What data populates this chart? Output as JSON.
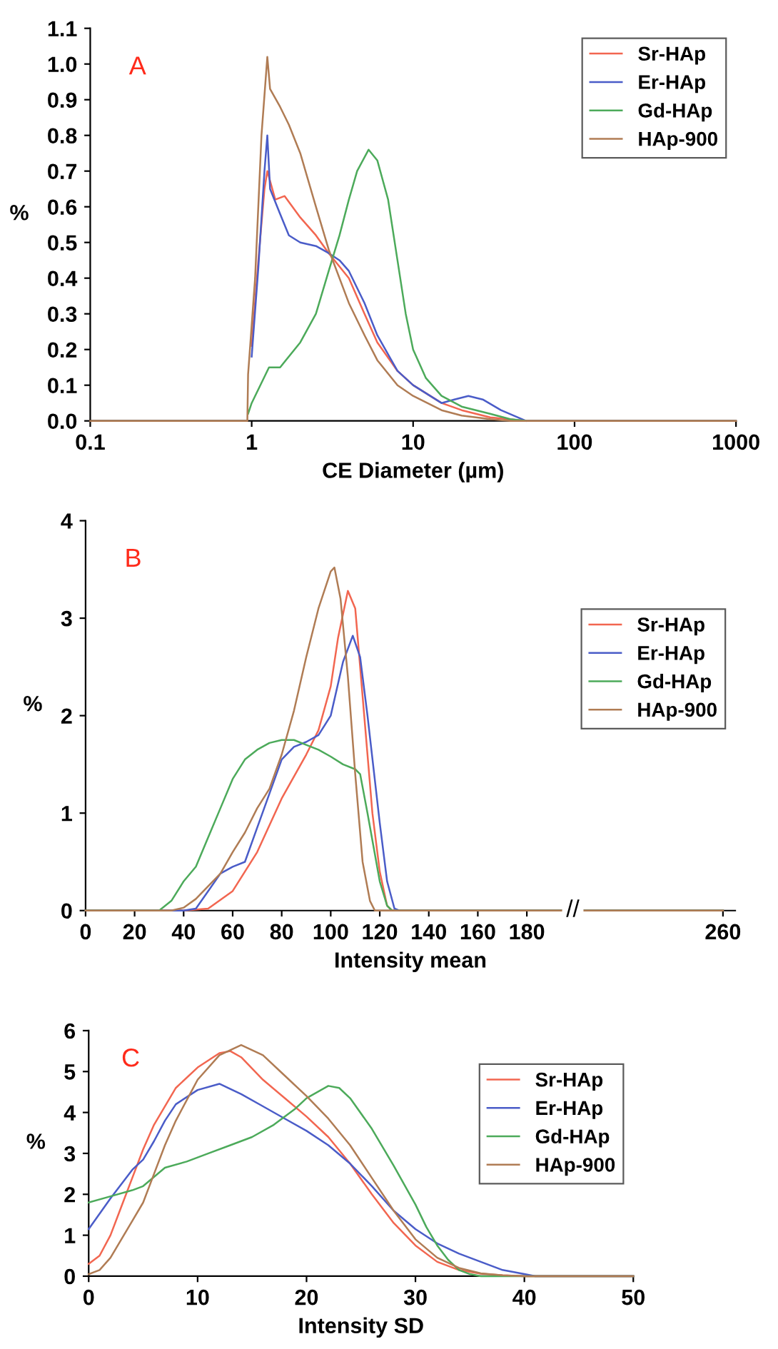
{
  "chart_data": [
    {
      "type": "line",
      "xlabel": "CE Diameter (µm)",
      "ylabel": "%",
      "annotations": [
        "A"
      ],
      "log": "x",
      "legend": "top right",
      "grid": false,
      "xlim": [
        0.1,
        1000
      ],
      "xticks": [
        0.1,
        1,
        10,
        100,
        1000
      ],
      "ylim": [
        0,
        1.1
      ],
      "yticks": [
        {
          "value": 0,
          "label": "0.0"
        },
        0.1,
        0.2,
        0.3,
        0.4,
        0.5,
        0.6,
        0.7,
        0.8,
        0.9,
        {
          "value": 1,
          "label": "1.0"
        },
        1.1
      ],
      "series": [
        {
          "name": "Sr-HAp",
          "color": "#f26650",
          "x": [
            1.0,
            1.1,
            1.2,
            1.25,
            1.4,
            1.6,
            2,
            2.5,
            3,
            4,
            5,
            6,
            8,
            10,
            15,
            20,
            30,
            50
          ],
          "values": [
            0.21,
            0.45,
            0.65,
            0.7,
            0.62,
            0.63,
            0.57,
            0.52,
            0.47,
            0.4,
            0.3,
            0.22,
            0.14,
            0.1,
            0.05,
            0.03,
            0.01,
            0
          ]
        },
        {
          "name": "Er-HAp",
          "color": "#4a5cc8",
          "x": [
            1.0,
            1.1,
            1.2,
            1.25,
            1.3,
            1.5,
            1.7,
            2,
            2.5,
            3,
            3.5,
            4,
            5,
            6,
            8,
            10,
            15,
            18,
            22,
            27,
            35,
            50
          ],
          "values": [
            0.18,
            0.43,
            0.7,
            0.8,
            0.65,
            0.58,
            0.52,
            0.5,
            0.49,
            0.47,
            0.45,
            0.42,
            0.33,
            0.24,
            0.14,
            0.1,
            0.05,
            0.06,
            0.07,
            0.06,
            0.03,
            0
          ]
        },
        {
          "name": "Gd-HAp",
          "color": "#4caa5a",
          "x": [
            0.95,
            1.0,
            1.28,
            1.5,
            2,
            2.5,
            3,
            3.5,
            4,
            4.5,
            5.3,
            6,
            7,
            8,
            9,
            10,
            12,
            15,
            20,
            30,
            40,
            50
          ],
          "values": [
            0.02,
            0.05,
            0.15,
            0.15,
            0.22,
            0.3,
            0.42,
            0.52,
            0.62,
            0.7,
            0.76,
            0.73,
            0.62,
            0.45,
            0.3,
            0.2,
            0.12,
            0.07,
            0.04,
            0.02,
            0.005,
            0
          ]
        },
        {
          "name": "HAp-900",
          "color": "#b07c54",
          "x": [
            0.1,
            0.94,
            0.95,
            1.05,
            1.15,
            1.25,
            1.3,
            1.5,
            1.7,
            2,
            2.5,
            3,
            4,
            5,
            6,
            8,
            10,
            15,
            20,
            30,
            40,
            1000
          ],
          "values": [
            0,
            0,
            0.13,
            0.4,
            0.8,
            1.02,
            0.93,
            0.88,
            0.83,
            0.75,
            0.6,
            0.48,
            0.33,
            0.24,
            0.17,
            0.1,
            0.07,
            0.03,
            0.015,
            0.005,
            0,
            0
          ]
        }
      ]
    },
    {
      "type": "line",
      "xlabel": "Intensity mean",
      "ylabel": "%",
      "annotations": [
        "B",
        "//"
      ],
      "legend": "right",
      "grid": false,
      "xlim": [
        0,
        265
      ],
      "xticks": [
        0,
        20,
        40,
        60,
        80,
        100,
        120,
        140,
        160,
        180,
        260
      ],
      "ylim": [
        0,
        4
      ],
      "yticks": [
        0,
        1,
        2,
        3,
        4
      ],
      "series": [
        {
          "name": "Sr-HAp",
          "color": "#f26650",
          "x": [
            0,
            40,
            50,
            60,
            70,
            80,
            90,
            95,
            100,
            103,
            107,
            110,
            113,
            117,
            120,
            123,
            125,
            260
          ],
          "values": [
            0,
            0,
            0.02,
            0.2,
            0.6,
            1.15,
            1.6,
            1.85,
            2.3,
            2.8,
            3.28,
            3.1,
            2.2,
            1.0,
            0.4,
            0.05,
            0,
            0
          ]
        },
        {
          "name": "Er-HAp",
          "color": "#4a5cc8",
          "x": [
            0,
            40,
            45,
            50,
            55,
            60,
            65,
            70,
            75,
            80,
            85,
            90,
            95,
            100,
            105,
            109,
            112,
            115,
            120,
            123,
            126,
            128,
            260
          ],
          "values": [
            0,
            0,
            0.02,
            0.2,
            0.38,
            0.45,
            0.5,
            0.85,
            1.2,
            1.55,
            1.68,
            1.73,
            1.8,
            2.0,
            2.55,
            2.82,
            2.6,
            2.0,
            0.9,
            0.3,
            0.02,
            0,
            0
          ]
        },
        {
          "name": "Gd-HAp",
          "color": "#4caa5a",
          "x": [
            0,
            30,
            35,
            40,
            45,
            50,
            55,
            60,
            65,
            70,
            75,
            80,
            85,
            90,
            95,
            100,
            105,
            110,
            112,
            115,
            120,
            123,
            125,
            260
          ],
          "values": [
            0,
            0,
            0.1,
            0.3,
            0.45,
            0.75,
            1.05,
            1.35,
            1.55,
            1.65,
            1.72,
            1.75,
            1.75,
            1.7,
            1.65,
            1.58,
            1.5,
            1.45,
            1.4,
            1.0,
            0.3,
            0.05,
            0,
            0
          ]
        },
        {
          "name": "HAp-900",
          "color": "#b07c54",
          "x": [
            0,
            35,
            40,
            45,
            50,
            55,
            60,
            65,
            70,
            75,
            80,
            85,
            90,
            95,
            100,
            101.5,
            104,
            107,
            110,
            113,
            116,
            118,
            260
          ],
          "values": [
            0,
            0,
            0.03,
            0.12,
            0.25,
            0.38,
            0.6,
            0.8,
            1.05,
            1.25,
            1.6,
            2.05,
            2.6,
            3.1,
            3.48,
            3.52,
            3.2,
            2.4,
            1.4,
            0.5,
            0.1,
            0,
            0
          ]
        }
      ]
    },
    {
      "type": "line",
      "xlabel": "Intensity SD",
      "ylabel": "%",
      "annotations": [
        "C"
      ],
      "legend": "right",
      "grid": false,
      "xlim": [
        0,
        50
      ],
      "xticks": [
        0,
        10,
        20,
        30,
        40,
        50
      ],
      "ylim": [
        0,
        6
      ],
      "yticks": [
        0,
        1,
        2,
        3,
        4,
        5,
        6
      ],
      "series": [
        {
          "name": "Sr-HAp",
          "color": "#f26650",
          "x": [
            0,
            1,
            2,
            3,
            4,
            5,
            6,
            8,
            10,
            12,
            13,
            14,
            16,
            18,
            20,
            22,
            24,
            26,
            28,
            30,
            32,
            34,
            36,
            38,
            40,
            50
          ],
          "values": [
            0.3,
            0.5,
            1.0,
            1.7,
            2.4,
            3.1,
            3.7,
            4.6,
            5.1,
            5.45,
            5.5,
            5.35,
            4.8,
            4.35,
            3.9,
            3.4,
            2.75,
            2.0,
            1.3,
            0.75,
            0.35,
            0.15,
            0.06,
            0.02,
            0,
            0
          ]
        },
        {
          "name": "Er-HAp",
          "color": "#4a5cc8",
          "x": [
            0,
            2,
            4,
            5,
            6,
            7,
            8,
            10,
            12,
            14,
            16,
            18,
            20,
            22,
            24,
            26,
            28,
            30,
            32,
            34,
            36,
            38,
            40,
            41,
            50
          ],
          "values": [
            1.15,
            1.9,
            2.6,
            2.85,
            3.3,
            3.8,
            4.2,
            4.55,
            4.7,
            4.45,
            4.15,
            3.85,
            3.55,
            3.2,
            2.75,
            2.2,
            1.6,
            1.15,
            0.8,
            0.55,
            0.35,
            0.15,
            0.05,
            0,
            0
          ]
        },
        {
          "name": "Gd-HAp",
          "color": "#4caa5a",
          "x": [
            0,
            2,
            4,
            5,
            7,
            9,
            11,
            13,
            15,
            17,
            19,
            20,
            22,
            23,
            24,
            26,
            28,
            30,
            31,
            32,
            33,
            34,
            35,
            36,
            50
          ],
          "values": [
            1.8,
            1.95,
            2.1,
            2.2,
            2.65,
            2.8,
            3.0,
            3.2,
            3.4,
            3.7,
            4.1,
            4.35,
            4.65,
            4.6,
            4.35,
            3.6,
            2.7,
            1.75,
            1.2,
            0.75,
            0.4,
            0.15,
            0.05,
            0,
            0
          ]
        },
        {
          "name": "HAp-900",
          "color": "#b07c54",
          "x": [
            0,
            1,
            2,
            3,
            4,
            5,
            6,
            7,
            8,
            10,
            12,
            14,
            16,
            18,
            20,
            22,
            24,
            26,
            28,
            30,
            32,
            34,
            36,
            38,
            40,
            50
          ],
          "values": [
            0.05,
            0.15,
            0.45,
            0.9,
            1.35,
            1.8,
            2.5,
            3.2,
            3.8,
            4.8,
            5.4,
            5.65,
            5.4,
            4.9,
            4.4,
            3.85,
            3.2,
            2.4,
            1.6,
            0.9,
            0.45,
            0.2,
            0.07,
            0.02,
            0,
            0
          ]
        }
      ]
    }
  ]
}
